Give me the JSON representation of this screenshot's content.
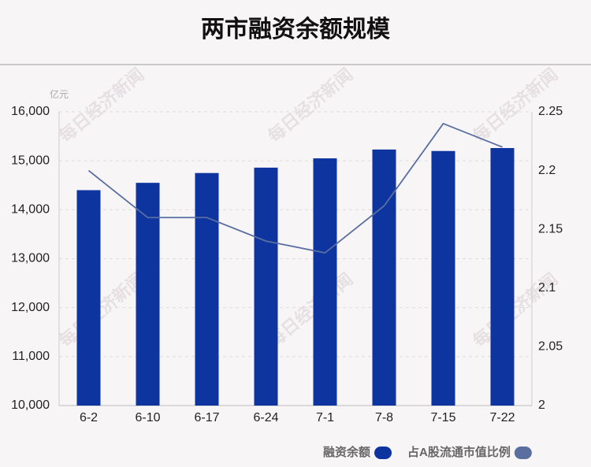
{
  "chart_data": {
    "type": "bar_line",
    "title": "两市融资余额规模",
    "unit": "亿元",
    "watermark": "每日经济新闻",
    "categories": [
      "6-2",
      "6-10",
      "6-17",
      "6-24",
      "7-1",
      "7-8",
      "7-15",
      "7-22"
    ],
    "series": [
      {
        "name": "融资余额",
        "type": "bar",
        "color": "#0e34a0",
        "values": [
          14400,
          14550,
          14750,
          14860,
          15050,
          15230,
          15200,
          15260
        ]
      },
      {
        "name": "占A股流通市值比例",
        "type": "line",
        "axis": "y2",
        "color": "#5a6fa0",
        "values": [
          2.2,
          2.16,
          2.16,
          2.14,
          2.13,
          2.17,
          2.24,
          2.22
        ]
      }
    ],
    "ylim": [
      10000,
      16000
    ],
    "yticks": [
      {
        "value": 10000,
        "label": "10,000"
      },
      {
        "value": 11000,
        "label": "11,000"
      },
      {
        "value": 12000,
        "label": "12,000"
      },
      {
        "value": 13000,
        "label": "13,000"
      },
      {
        "value": 14000,
        "label": "14,000"
      },
      {
        "value": 15000,
        "label": "15,000"
      },
      {
        "value": 16000,
        "label": "16,000"
      }
    ],
    "y2lim": [
      2,
      2.25
    ],
    "y2ticks": [
      2,
      2.05,
      2.1,
      2.15,
      2.2,
      2.25
    ],
    "grid": true
  }
}
